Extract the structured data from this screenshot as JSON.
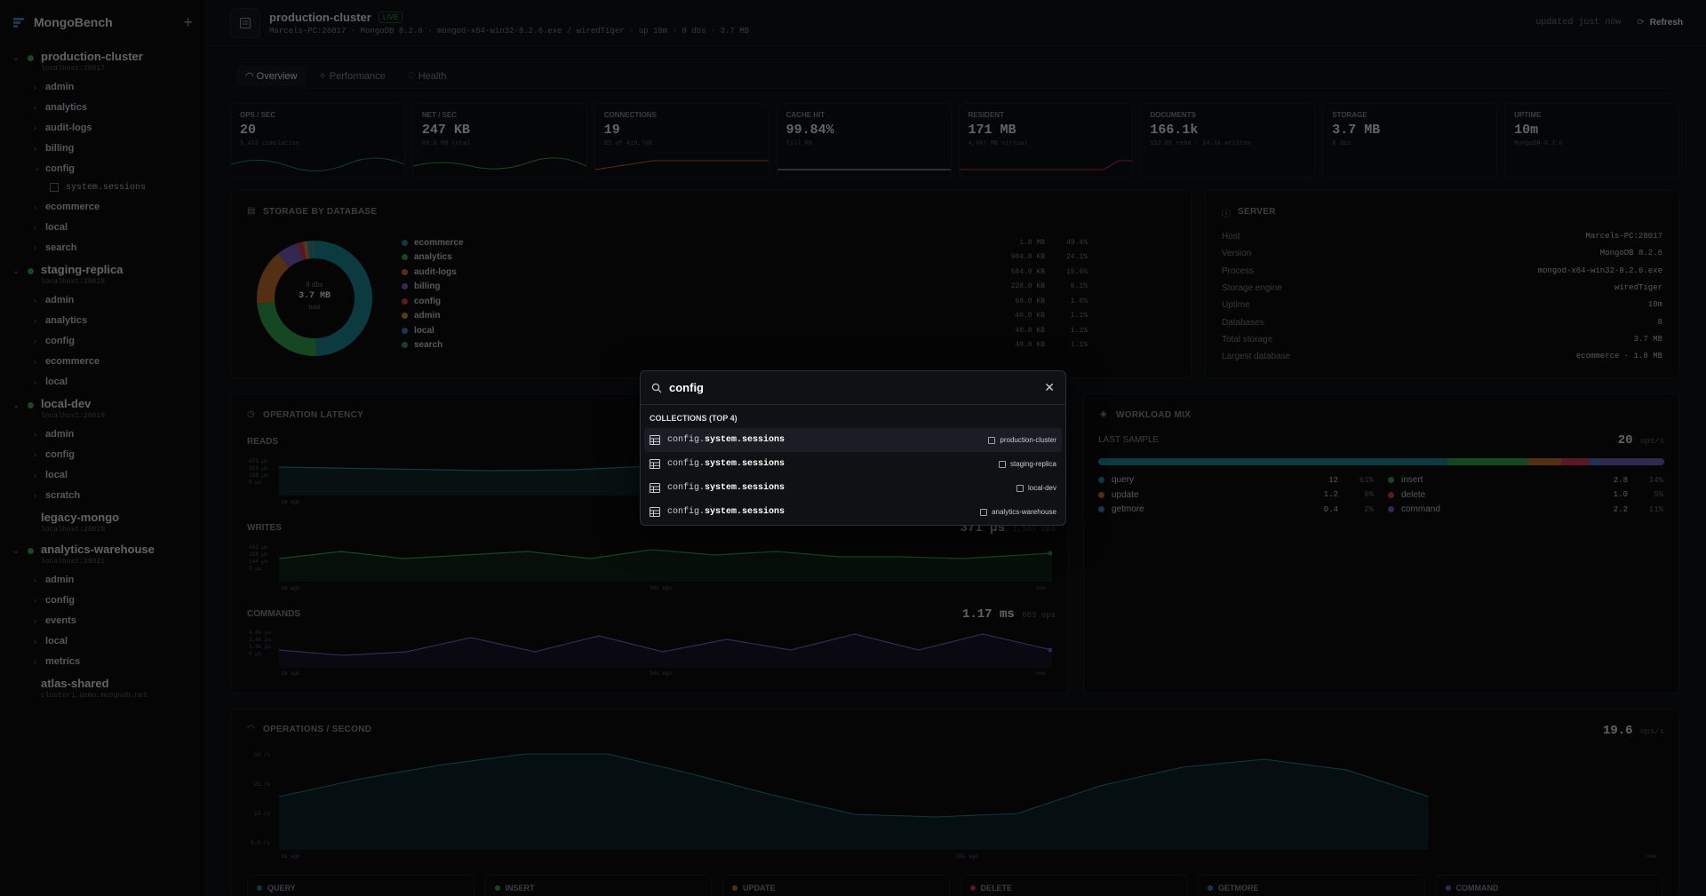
{
  "app": {
    "name": "MongoBench",
    "add_label": "+"
  },
  "sidebar": {
    "connections": [
      {
        "name": "production-cluster",
        "host": "localhost:28017",
        "online": true,
        "expanded": true,
        "dbs": [
          "admin",
          "analytics",
          "audit-logs",
          "billing",
          "config",
          "ecommerce",
          "local",
          "search"
        ],
        "expanded_db": "config",
        "collections": [
          "system.sessions"
        ]
      },
      {
        "name": "staging-replica",
        "host": "localhost:28018",
        "online": true,
        "expanded": true,
        "dbs": [
          "admin",
          "analytics",
          "config",
          "ecommerce",
          "local"
        ]
      },
      {
        "name": "local-dev",
        "host": "localhost:28019",
        "online": true,
        "expanded": true,
        "dbs": [
          "admin",
          "config",
          "local",
          "scratch"
        ]
      },
      {
        "name": "legacy-mongo",
        "host": "localhost:28020",
        "online": false,
        "expanded": false,
        "dbs": []
      },
      {
        "name": "analytics-warehouse",
        "host": "localhost:28021",
        "online": true,
        "expanded": true,
        "dbs": [
          "admin",
          "config",
          "events",
          "local",
          "metrics"
        ]
      },
      {
        "name": "atlas-shared",
        "host": "cluster1.demo.mongodb.net",
        "online": false,
        "expanded": false,
        "dbs": []
      }
    ]
  },
  "header": {
    "title": "production-cluster",
    "live_badge": "LIVE",
    "subtitle": "Marcels-PC:28017 · MongoDB 8.2.6 · mongod-x64-win32-8.2.6.exe / wiredTiger · up 10m · 8 dbs · 3.7 MB",
    "updated": "updated just now",
    "refresh_label": "Refresh"
  },
  "tabs": [
    "Overview",
    "Performance",
    "Health"
  ],
  "metrics": [
    {
      "label": "OPS / SEC",
      "value": "20",
      "sub": "5,413 cumulative",
      "color": "#1e8a8a"
    },
    {
      "label": "NET / SEC",
      "value": "247 KB",
      "sub": "89.0 MB total",
      "color": "#2fa84f"
    },
    {
      "label": "CONNECTIONS",
      "value": "19",
      "sub": "85 of 419,700",
      "color": "#c8702a"
    },
    {
      "label": "CACHE HIT",
      "value": "99.84%",
      "sub": "fill 0%",
      "color": "#c8ccd2"
    },
    {
      "label": "RESIDENT",
      "value": "171 MB",
      "sub": "4,407 MB virtual",
      "color": "#d9385a"
    },
    {
      "label": "DOCUMENTS",
      "value": "166.1k",
      "sub": "152.0k read · 14.1k written",
      "color": "#c8ccd2"
    },
    {
      "label": "STORAGE",
      "value": "3.7 MB",
      "sub": "8 dbs",
      "color": "#c8ccd2"
    },
    {
      "label": "UPTIME",
      "value": "10m",
      "sub": "MongoDB 8.2.6",
      "color": "#c8ccd2"
    }
  ],
  "storage": {
    "title": "STORAGE BY DATABASE",
    "center_top": "8 dbs",
    "center_value": "3.7 MB",
    "center_bottom": "total",
    "rows": [
      {
        "name": "ecommerce",
        "size": "1.8 MB",
        "pct": "49.4%",
        "share": 49.4,
        "color": "#1e8a9a"
      },
      {
        "name": "analytics",
        "size": "904.0 KB",
        "pct": "24.1%",
        "share": 24.1,
        "color": "#2fa84f"
      },
      {
        "name": "audit-logs",
        "size": "584.0 KB",
        "pct": "15.6%",
        "share": 15.6,
        "color": "#c8702a"
      },
      {
        "name": "billing",
        "size": "228.0 KB",
        "pct": "6.1%",
        "share": 6.1,
        "color": "#7a5fc0"
      },
      {
        "name": "config",
        "size": "60.0 KB",
        "pct": "1.6%",
        "share": 1.6,
        "color": "#d9385a"
      },
      {
        "name": "admin",
        "size": "40.0 KB",
        "pct": "1.1%",
        "share": 1.1,
        "color": "#d08a30"
      },
      {
        "name": "local",
        "size": "40.0 KB",
        "pct": "1.1%",
        "share": 1.1,
        "color": "#4a7ac8"
      },
      {
        "name": "search",
        "size": "40.0 KB",
        "pct": "1.1%",
        "share": 1.1,
        "color": "#2f9a6a"
      }
    ]
  },
  "server": {
    "title": "SERVER",
    "rows": [
      {
        "k": "Host",
        "v": "Marcels-PC:28017"
      },
      {
        "k": "Version",
        "v": "MongoDB 8.2.6"
      },
      {
        "k": "Process",
        "v": "mongod-x64-win32-8.2.6.exe"
      },
      {
        "k": "Storage engine",
        "v": "wiredTiger"
      },
      {
        "k": "Uptime",
        "v": "10m"
      },
      {
        "k": "Databases",
        "v": "8"
      },
      {
        "k": "Total storage",
        "v": "3.7 MB"
      },
      {
        "k": "Largest database",
        "v": "ecommerce · 1.8 MB"
      }
    ]
  },
  "latency": {
    "title": "OPERATION LATENCY",
    "reads_label": "READS",
    "reads_ticks": [
      "475 µs",
      "315 µs",
      "158 µs",
      "0 µs"
    ],
    "writes_label": "WRITES",
    "writes_value": "371 µs",
    "writes_ops": "1,567 ops",
    "writes_ticks": [
      "432 µs",
      "288 µs",
      "144 µs",
      "0 µs"
    ],
    "commands_label": "COMMANDS",
    "commands_value": "1.17 ms",
    "commands_ops": "603 ops",
    "commands_ticks": [
      "4.0k µs",
      "2.6k µs",
      "1.3k µs",
      "0 µs"
    ],
    "x_ticks": [
      "1m ago",
      "30s ago",
      "now"
    ]
  },
  "workload": {
    "title": "WORKLOAD MIX",
    "last_sample": "LAST SAMPLE",
    "ops_value": "20",
    "ops_unit": "ops/s",
    "rows": [
      {
        "name": "query",
        "val": "12",
        "pct": "61%",
        "share": 61,
        "color": "#1e8a9a"
      },
      {
        "name": "insert",
        "val": "2.8",
        "pct": "14%",
        "share": 14,
        "color": "#2fa84f"
      },
      {
        "name": "update",
        "val": "1.2",
        "pct": "6%",
        "share": 6,
        "color": "#c8702a"
      },
      {
        "name": "delete",
        "val": "1.0",
        "pct": "5%",
        "share": 5,
        "color": "#d9385a"
      },
      {
        "name": "getmore",
        "val": "0.4",
        "pct": "2%",
        "share": 2,
        "color": "#4a7ac8"
      },
      {
        "name": "command",
        "val": "2.2",
        "pct": "11%",
        "share": 11,
        "color": "#7a5fc0"
      }
    ]
  },
  "ops_chart": {
    "title": "OPERATIONS / SECOND",
    "value": "19.6",
    "unit": "ops/s",
    "y_ticks": [
      "38 /s",
      "25 /s",
      "13 /s",
      "0.0 /s"
    ],
    "x_ticks": [
      "1m ago",
      "30s ago",
      "now"
    ],
    "bottom_labels": [
      "QUERY",
      "INSERT",
      "UPDATE",
      "DELETE",
      "GETMORE",
      "COMMAND"
    ]
  },
  "palette": {
    "query": "config",
    "section_label": "COLLECTIONS (TOP 4)",
    "results": [
      {
        "db": "config.",
        "coll": "system.sessions",
        "cluster": "production-cluster"
      },
      {
        "db": "config.",
        "coll": "system.sessions",
        "cluster": "staging-replica"
      },
      {
        "db": "config.",
        "coll": "system.sessions",
        "cluster": "local-dev"
      },
      {
        "db": "config.",
        "coll": "system.sessions",
        "cluster": "analytics-warehouse"
      }
    ]
  }
}
